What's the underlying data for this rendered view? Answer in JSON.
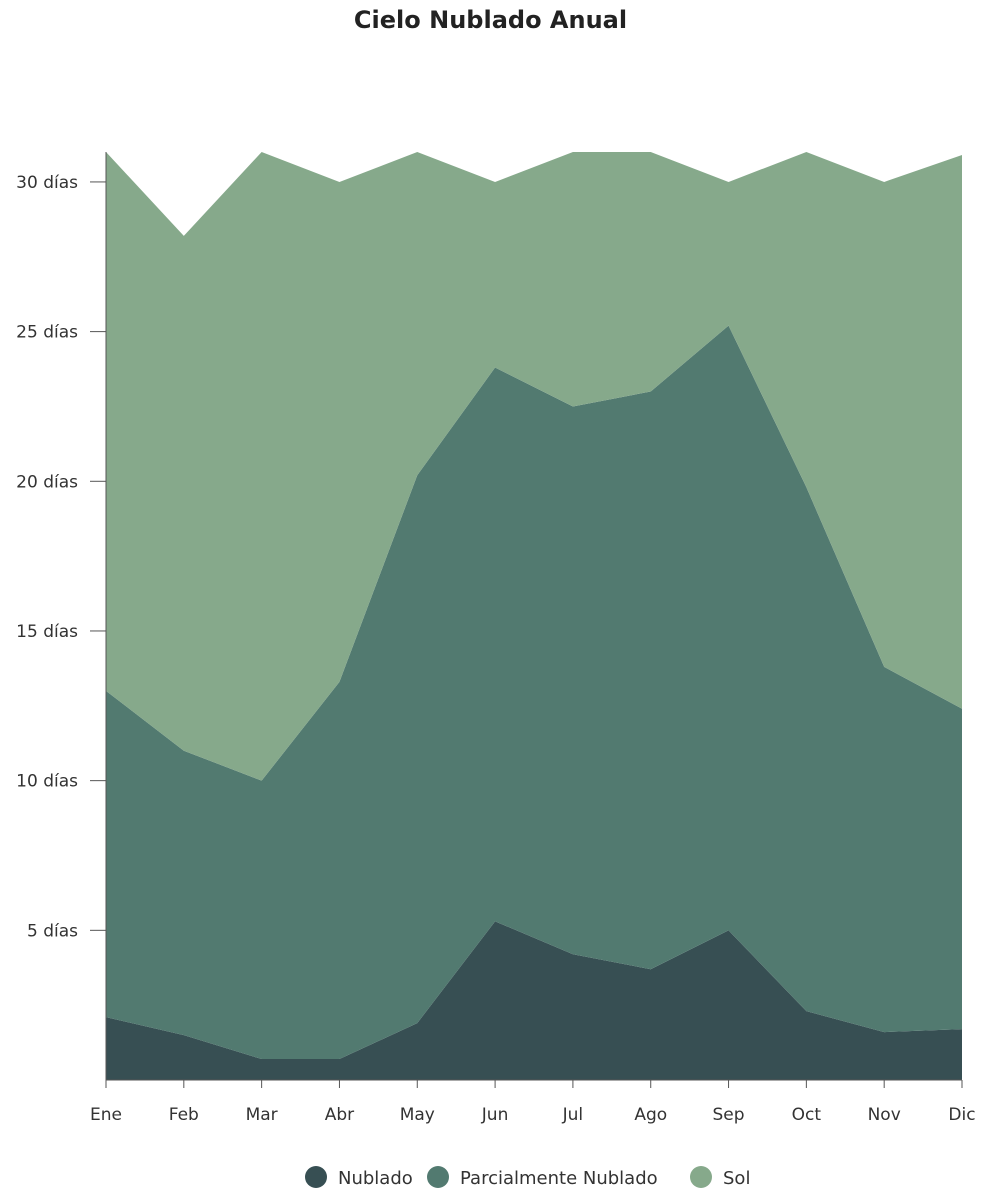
{
  "chart_data": {
    "type": "area",
    "stacked": true,
    "title": "Cielo Nublado Anual",
    "xlabel": "",
    "ylabel": "",
    "categories": [
      "Ene",
      "Feb",
      "Mar",
      "Abr",
      "May",
      "Jun",
      "Jul",
      "Ago",
      "Sep",
      "Oct",
      "Nov",
      "Dic"
    ],
    "y_ticks": [
      5,
      10,
      15,
      20,
      25,
      30
    ],
    "y_tick_suffix": " días",
    "ylim": [
      0,
      31
    ],
    "grid": false,
    "legend_position": "bottom",
    "series": [
      {
        "name": "Nublado",
        "color": "#374f53",
        "values": [
          2.1,
          1.5,
          0.7,
          0.7,
          1.9,
          5.3,
          4.2,
          3.7,
          5.0,
          2.3,
          1.6,
          1.7
        ]
      },
      {
        "name": "Parcialmente Nublado",
        "color": "#527a70",
        "values": [
          10.9,
          9.5,
          9.3,
          12.6,
          18.3,
          18.5,
          18.3,
          19.3,
          20.2,
          17.5,
          12.2,
          10.7
        ]
      },
      {
        "name": "Sol",
        "color": "#86a98b",
        "values": [
          18.0,
          17.2,
          21.0,
          16.7,
          10.8,
          6.2,
          8.5,
          8.0,
          4.8,
          11.2,
          16.2,
          18.5
        ]
      }
    ]
  }
}
